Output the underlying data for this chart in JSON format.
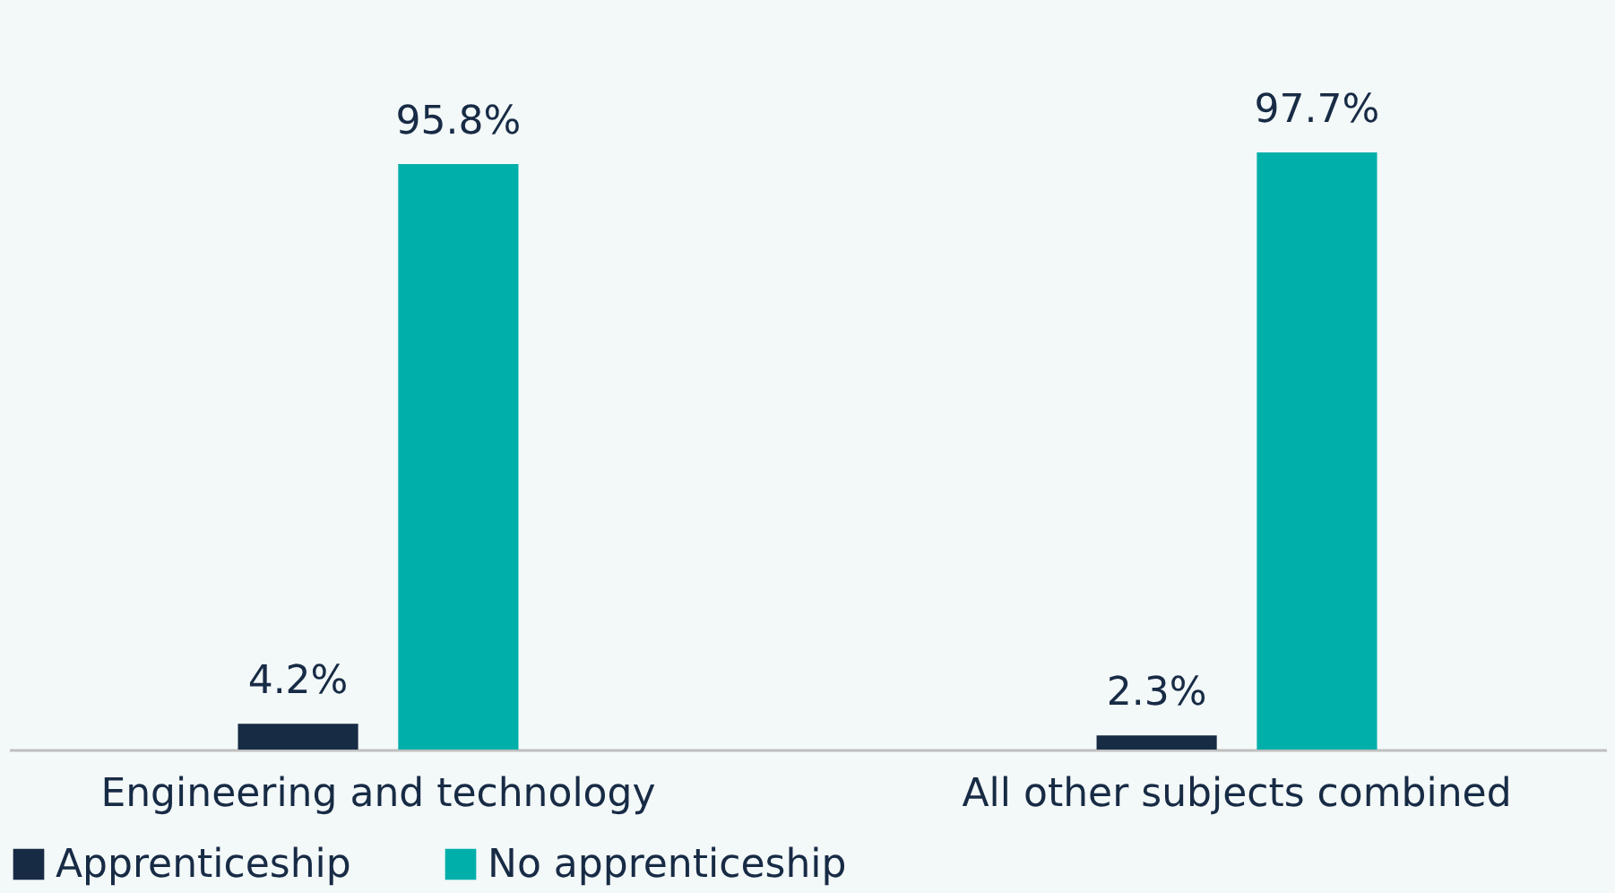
{
  "chart_data": {
    "type": "bar",
    "categories": [
      "Engineering and technology",
      "All other subjects combined"
    ],
    "series": [
      {
        "name": "Apprenticeship",
        "color": "#172b45",
        "values": [
          4.2,
          2.3
        ],
        "value_labels": [
          "4.2%",
          "2.3%"
        ]
      },
      {
        "name": "No apprenticeship",
        "color": "#00afaa",
        "values": [
          95.8,
          97.7
        ],
        "value_labels": [
          "95.8%",
          "97.7%"
        ]
      }
    ],
    "legend": "bottom",
    "grid": false
  }
}
